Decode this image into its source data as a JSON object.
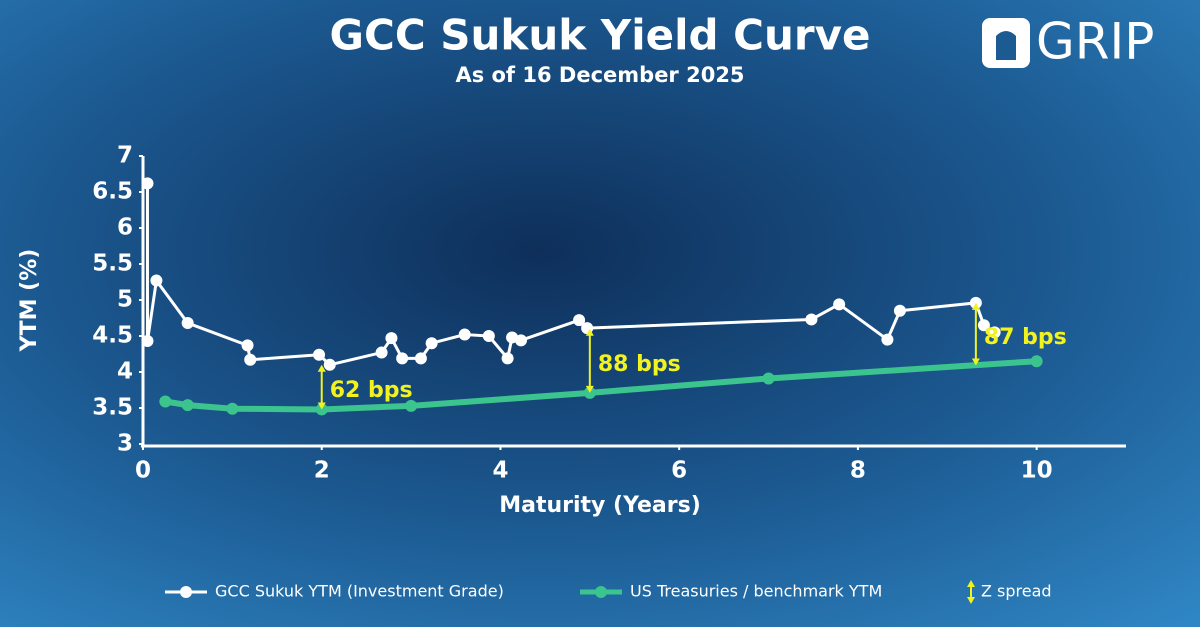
{
  "chart_data": {
    "type": "line",
    "title": "GCC Sukuk Yield Curve",
    "subtitle": "As of 16 December 2025",
    "logo": "GRIP",
    "x_label": "Maturity (Years)",
    "y_label": "YTM (%)",
    "xlim": [
      0,
      11
    ],
    "xticks": [
      0,
      2,
      4,
      6,
      8,
      10
    ],
    "ylim": [
      3,
      7
    ],
    "yticks": [
      3,
      3.5,
      4,
      4.5,
      5,
      5.5,
      6,
      6.5,
      7
    ],
    "series": [
      {
        "name": "GCC Sukuk YTM (Investment Grade)",
        "color": "#ffffff",
        "x": [
          0.05,
          0.05,
          0.15,
          0.5,
          1.17,
          1.2,
          1.97,
          2.09,
          2.67,
          2.78,
          2.9,
          3.11,
          3.23,
          3.6,
          3.87,
          4.08,
          4.13,
          4.23,
          4.88,
          4.97,
          7.48,
          7.79,
          8.33,
          8.47,
          9.32,
          9.41,
          9.53
        ],
        "values": [
          6.62,
          4.43,
          5.27,
          4.68,
          4.37,
          4.17,
          4.24,
          4.1,
          4.27,
          4.47,
          4.19,
          4.19,
          4.4,
          4.52,
          4.5,
          4.19,
          4.48,
          4.44,
          4.72,
          4.61,
          4.73,
          4.94,
          4.45,
          4.85,
          4.96,
          4.65,
          4.55
        ]
      },
      {
        "name": "US Treasuries / benchmark YTM",
        "color": "#3cc48f",
        "x": [
          0.25,
          0.5,
          1,
          2,
          3,
          5,
          7,
          10
        ],
        "values": [
          3.59,
          3.54,
          3.49,
          3.48,
          3.53,
          3.71,
          3.91,
          4.15
        ]
      }
    ],
    "spread_legend": "Z spread",
    "spread_color": "#f2f21e",
    "annotations": [
      {
        "text": "62 bps",
        "x": 2,
        "y_low": 3.48,
        "y_high": 4.1
      },
      {
        "text": "88 bps",
        "x": 5,
        "y_low": 3.71,
        "y_high": 4.6
      },
      {
        "text": "87 bps",
        "x": 9.32,
        "y_low": 4.09,
        "y_high": 4.96
      }
    ]
  }
}
